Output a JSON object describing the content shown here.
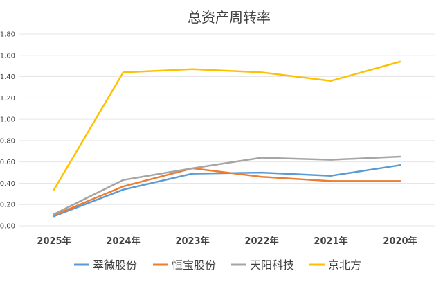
{
  "chart_data": {
    "type": "line",
    "title": "总资产周转率",
    "categories": [
      "2025年",
      "2024年",
      "2023年",
      "2022年",
      "2021年",
      "2020年"
    ],
    "ylim": [
      0,
      1.8
    ],
    "yticks": [
      "0.00",
      "0.20",
      "0.40",
      "0.60",
      "0.80",
      "1.00",
      "1.20",
      "1.40",
      "1.60",
      "1.80"
    ],
    "grid": true,
    "legend_position": "bottom",
    "series": [
      {
        "name": "翠微股份",
        "color": "#5B9BD5",
        "values": [
          0.09,
          0.34,
          0.49,
          0.5,
          0.47,
          0.57
        ]
      },
      {
        "name": "恒宝股份",
        "color": "#ED7D31",
        "values": [
          0.1,
          0.37,
          0.54,
          0.46,
          0.42,
          0.42
        ]
      },
      {
        "name": "天阳科技",
        "color": "#A5A5A5",
        "values": [
          0.11,
          0.43,
          0.54,
          0.64,
          0.62,
          0.65
        ]
      },
      {
        "name": "京北方",
        "color": "#FFC000",
        "values": [
          0.34,
          1.44,
          1.47,
          1.44,
          1.36,
          1.54
        ]
      }
    ]
  }
}
